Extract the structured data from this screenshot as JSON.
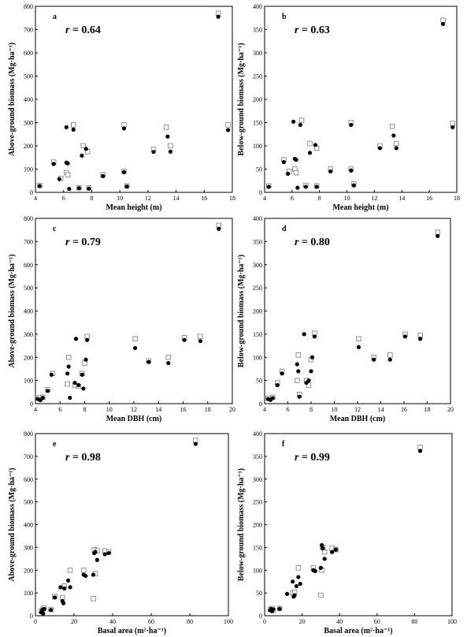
{
  "chart_data": [
    {
      "type": "scatter",
      "panel_label": "a",
      "annotation": "r = 0.64",
      "xlabel": "Mean height (m)",
      "ylabel": "Above-ground biomass (Mg·ha⁻¹)",
      "xlim": [
        4,
        18
      ],
      "ylim": [
        0,
        800
      ],
      "xticks": [
        "4",
        "6",
        "8",
        "10",
        "12",
        "14",
        "16",
        "18"
      ],
      "yticks": [
        "0",
        "100",
        "200",
        "300",
        "400",
        "500",
        "600",
        "700",
        "800"
      ],
      "grid": false,
      "series": [
        {
          "marker": "filled-circle",
          "points": [
            [
              4.3,
              27
            ],
            [
              5.3,
              122
            ],
            [
              5.7,
              57
            ],
            [
              6.2,
              280
            ],
            [
              6.2,
              128
            ],
            [
              6.3,
              125
            ],
            [
              6.4,
              15
            ],
            [
              6.7,
              270
            ],
            [
              7.1,
              18
            ],
            [
              7.3,
              158
            ],
            [
              7.6,
              187
            ],
            [
              7.8,
              16
            ],
            [
              8.8,
              70
            ],
            [
              10.3,
              87
            ],
            [
              10.3,
              275
            ],
            [
              10.5,
              25
            ],
            [
              12.4,
              174
            ],
            [
              13.4,
              240
            ],
            [
              13.6,
              175
            ],
            [
              17.0,
              755
            ],
            [
              17.7,
              268
            ]
          ]
        },
        {
          "marker": "open-square",
          "points": [
            [
              4.3,
              30
            ],
            [
              5.3,
              130
            ],
            [
              5.8,
              60
            ],
            [
              6.2,
              85
            ],
            [
              6.3,
              75
            ],
            [
              6.7,
              290
            ],
            [
              7.1,
              20
            ],
            [
              7.4,
              200
            ],
            [
              7.7,
              175
            ],
            [
              7.8,
              20
            ],
            [
              8.8,
              75
            ],
            [
              10.3,
              290
            ],
            [
              10.3,
              90
            ],
            [
              10.5,
              28
            ],
            [
              12.4,
              185
            ],
            [
              13.3,
              280
            ],
            [
              13.6,
              200
            ],
            [
              17.0,
              770
            ],
            [
              17.7,
              290
            ]
          ]
        }
      ]
    },
    {
      "type": "scatter",
      "panel_label": "b",
      "annotation": "r = 0.63",
      "xlabel": "Mean height (m)",
      "ylabel": "Below-ground biomass (Mg·ha⁻¹)",
      "xlim": [
        4,
        18
      ],
      "ylim": [
        0,
        400
      ],
      "xticks": [
        "4",
        "6",
        "8",
        "10",
        "12",
        "14",
        "16",
        "18"
      ],
      "yticks": [
        "0",
        "50",
        "100",
        "150",
        "200",
        "250",
        "300",
        "350",
        "400"
      ],
      "grid": false,
      "series": [
        {
          "marker": "filled-circle",
          "points": [
            [
              4.3,
              12
            ],
            [
              5.4,
              65
            ],
            [
              5.7,
              40
            ],
            [
              6.1,
              152
            ],
            [
              6.2,
              72
            ],
            [
              6.3,
              70
            ],
            [
              6.4,
              10
            ],
            [
              6.6,
              145
            ],
            [
              7.0,
              12
            ],
            [
              7.3,
              85
            ],
            [
              7.7,
              102
            ],
            [
              7.8,
              12
            ],
            [
              8.8,
              45
            ],
            [
              10.3,
              145
            ],
            [
              10.3,
              47
            ],
            [
              10.5,
              15
            ],
            [
              12.4,
              95
            ],
            [
              13.4,
              122
            ],
            [
              13.6,
              95
            ],
            [
              17.0,
              362
            ],
            [
              17.7,
              140
            ]
          ]
        },
        {
          "marker": "open-square",
          "points": [
            [
              4.3,
              14
            ],
            [
              5.4,
              70
            ],
            [
              5.8,
              45
            ],
            [
              6.2,
              50
            ],
            [
              6.3,
              42
            ],
            [
              6.7,
              155
            ],
            [
              7.0,
              15
            ],
            [
              7.3,
              105
            ],
            [
              7.8,
              95
            ],
            [
              7.8,
              14
            ],
            [
              8.8,
              50
            ],
            [
              10.3,
              150
            ],
            [
              10.3,
              50
            ],
            [
              10.5,
              18
            ],
            [
              12.4,
              100
            ],
            [
              13.3,
              142
            ],
            [
              13.6,
              105
            ],
            [
              17.0,
              370
            ],
            [
              17.7,
              148
            ]
          ]
        }
      ]
    },
    {
      "type": "scatter",
      "panel_label": "c",
      "annotation": "r = 0.79",
      "xlabel": "Mean DBH (cm)",
      "ylabel": "Above-ground biomass (Mg·ha⁻¹)",
      "xlim": [
        4,
        20
      ],
      "ylim": [
        0,
        800
      ],
      "xticks": [
        "4",
        "6",
        "8",
        "10",
        "12",
        "14",
        "16",
        "18",
        "20"
      ],
      "yticks": [
        "0",
        "100",
        "200",
        "300",
        "400",
        "500",
        "600",
        "700",
        "800"
      ],
      "grid": false,
      "series": [
        {
          "marker": "filled-circle",
          "points": [
            [
              4.2,
              20
            ],
            [
              4.4,
              15
            ],
            [
              4.6,
              25
            ],
            [
              5.0,
              55
            ],
            [
              5.3,
              125
            ],
            [
              6.6,
              130
            ],
            [
              6.7,
              160
            ],
            [
              6.8,
              25
            ],
            [
              7.2,
              90
            ],
            [
              7.3,
              280
            ],
            [
              7.5,
              80
            ],
            [
              7.8,
              125
            ],
            [
              7.9,
              65
            ],
            [
              8.1,
              190
            ],
            [
              8.2,
              275
            ],
            [
              12.1,
              240
            ],
            [
              13.2,
              180
            ],
            [
              14.8,
              175
            ],
            [
              16.1,
              275
            ],
            [
              17.4,
              270
            ],
            [
              18.9,
              755
            ]
          ]
        },
        {
          "marker": "open-square",
          "points": [
            [
              4.3,
              25
            ],
            [
              4.6,
              28
            ],
            [
              5.0,
              60
            ],
            [
              5.4,
              130
            ],
            [
              6.6,
              85
            ],
            [
              6.7,
              200
            ],
            [
              7.2,
              80
            ],
            [
              7.5,
              75
            ],
            [
              7.8,
              130
            ],
            [
              8.0,
              175
            ],
            [
              8.2,
              290
            ],
            [
              12.1,
              280
            ],
            [
              13.2,
              185
            ],
            [
              14.8,
              200
            ],
            [
              16.1,
              285
            ],
            [
              17.4,
              290
            ],
            [
              18.9,
              770
            ]
          ]
        }
      ]
    },
    {
      "type": "scatter",
      "panel_label": "d",
      "annotation": "r = 0.80",
      "xlabel": "Mean DBH (cm)",
      "ylabel": "Below-ground biomass (Mg·ha⁻¹)",
      "xlim": [
        4,
        20
      ],
      "ylim": [
        0,
        400
      ],
      "xticks": [
        "4",
        "6",
        "8",
        "10",
        "12",
        "14",
        "16",
        "18",
        "20"
      ],
      "yticks": [
        "0",
        "50",
        "100",
        "150",
        "200",
        "250",
        "300",
        "350",
        "400"
      ],
      "grid": false,
      "series": [
        {
          "marker": "filled-circle",
          "points": [
            [
              4.3,
              10
            ],
            [
              4.5,
              8
            ],
            [
              4.7,
              12
            ],
            [
              5.1,
              40
            ],
            [
              5.5,
              65
            ],
            [
              6.8,
              85
            ],
            [
              6.9,
              70
            ],
            [
              7.0,
              15
            ],
            [
              7.4,
              150
            ],
            [
              7.6,
              45
            ],
            [
              7.8,
              50
            ],
            [
              8.0,
              70
            ],
            [
              8.1,
              100
            ],
            [
              8.3,
              145
            ],
            [
              12.1,
              122
            ],
            [
              13.4,
              95
            ],
            [
              14.8,
              95
            ],
            [
              16.1,
              145
            ],
            [
              17.4,
              140
            ],
            [
              18.9,
              362
            ]
          ]
        },
        {
          "marker": "open-square",
          "points": [
            [
              4.3,
              12
            ],
            [
              4.7,
              14
            ],
            [
              5.1,
              45
            ],
            [
              5.5,
              70
            ],
            [
              6.8,
              50
            ],
            [
              6.9,
              105
            ],
            [
              7.0,
              20
            ],
            [
              7.6,
              50
            ],
            [
              7.8,
              40
            ],
            [
              8.0,
              95
            ],
            [
              8.3,
              152
            ],
            [
              12.1,
              140
            ],
            [
              13.4,
              100
            ],
            [
              14.8,
              105
            ],
            [
              16.1,
              150
            ],
            [
              17.4,
              148
            ],
            [
              18.9,
              370
            ]
          ]
        }
      ]
    },
    {
      "type": "scatter",
      "panel_label": "e",
      "annotation": "r = 0.98",
      "xlabel": "Basal area (m²·ha⁻¹)",
      "ylabel": "Above-ground biomass (Mg·ha⁻¹)",
      "xlim": [
        0,
        100
      ],
      "ylim": [
        0,
        800
      ],
      "xticks": [
        "0",
        "20",
        "40",
        "60",
        "80",
        "100"
      ],
      "yticks": [
        "0",
        "100",
        "200",
        "300",
        "400",
        "500",
        "600",
        "700",
        "800"
      ],
      "grid": false,
      "series": [
        {
          "marker": "filled-circle",
          "points": [
            [
              3,
              15
            ],
            [
              3.5,
              25
            ],
            [
              4,
              10
            ],
            [
              4.5,
              30
            ],
            [
              8,
              25
            ],
            [
              10,
              80
            ],
            [
              13,
              125
            ],
            [
              14,
              65
            ],
            [
              14.5,
              55
            ],
            [
              15,
              120
            ],
            [
              17,
              155
            ],
            [
              18,
              125
            ],
            [
              25,
              180
            ],
            [
              26,
              175
            ],
            [
              30,
              180
            ],
            [
              30.5,
              275
            ],
            [
              31,
              280
            ],
            [
              32,
              245
            ],
            [
              36,
              270
            ],
            [
              38,
              275
            ],
            [
              83,
              755
            ]
          ]
        },
        {
          "marker": "open-square",
          "points": [
            [
              3,
              20
            ],
            [
              4,
              30
            ],
            [
              4.5,
              35
            ],
            [
              8,
              28
            ],
            [
              10,
              85
            ],
            [
              14,
              80
            ],
            [
              15,
              130
            ],
            [
              18,
              200
            ],
            [
              25,
              200
            ],
            [
              30,
              75
            ],
            [
              30.5,
              290
            ],
            [
              31,
              185
            ],
            [
              32,
              285
            ],
            [
              36,
              285
            ],
            [
              38,
              280
            ],
            [
              83,
              770
            ]
          ]
        }
      ]
    },
    {
      "type": "scatter",
      "panel_label": "f",
      "annotation": "r = 0.99",
      "xlabel": "Basal area (m²·ha⁻¹)",
      "ylabel": "Below-ground biomass (Mg·ha⁻¹)",
      "xlim": [
        0,
        100
      ],
      "ylim": [
        0,
        400
      ],
      "xticks": [
        "0",
        "20",
        "40",
        "60",
        "80",
        "100"
      ],
      "yticks": [
        "0",
        "50",
        "100",
        "150",
        "200",
        "250",
        "300",
        "350",
        "400"
      ],
      "grid": false,
      "series": [
        {
          "marker": "filled-circle",
          "points": [
            [
              3,
              12
            ],
            [
              3.5,
              15
            ],
            [
              4,
              10
            ],
            [
              4.5,
              14
            ],
            [
              8,
              15
            ],
            [
              12,
              48
            ],
            [
              15,
              75
            ],
            [
              15.5,
              42
            ],
            [
              16,
              45
            ],
            [
              17,
              65
            ],
            [
              18,
              85
            ],
            [
              19,
              70
            ],
            [
              26,
              100
            ],
            [
              27,
              98
            ],
            [
              30,
              105
            ],
            [
              30.5,
              155
            ],
            [
              31,
              148
            ],
            [
              32,
              125
            ],
            [
              36,
              140
            ],
            [
              38,
              145
            ],
            [
              83,
              362
            ]
          ]
        },
        {
          "marker": "open-square",
          "points": [
            [
              3,
              14
            ],
            [
              4,
              16
            ],
            [
              4.5,
              12
            ],
            [
              8,
              16
            ],
            [
              15,
              50
            ],
            [
              16,
              52
            ],
            [
              18,
              105
            ],
            [
              26,
              105
            ],
            [
              30,
              45
            ],
            [
              30.5,
              100
            ],
            [
              31,
              150
            ],
            [
              32,
              140
            ],
            [
              36,
              148
            ],
            [
              38,
              145
            ],
            [
              83,
              370
            ]
          ]
        }
      ]
    }
  ]
}
